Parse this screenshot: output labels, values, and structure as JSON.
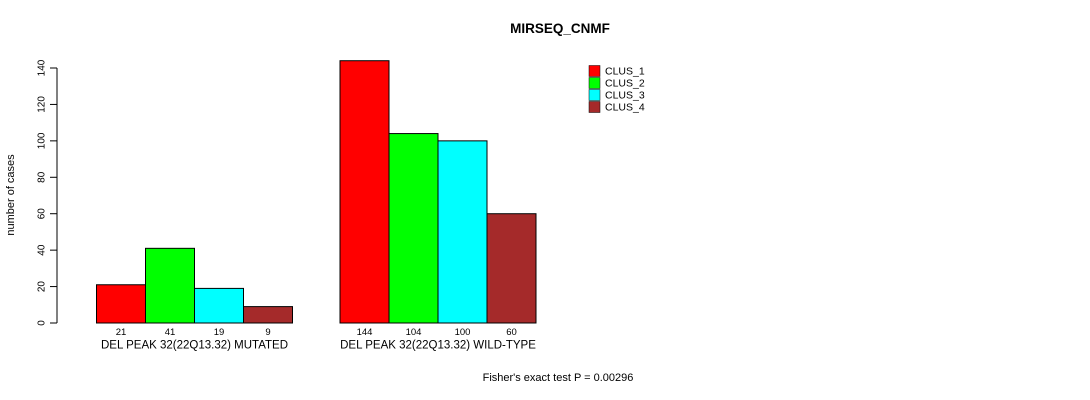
{
  "page": {
    "background": "#ffffff",
    "axis_color": "#000000",
    "text_color": "#000000"
  },
  "chart_data": {
    "type": "bar",
    "title": "MIRSEQ_CNMF",
    "xlabel": "",
    "ylabel": "number of cases",
    "ylim": [
      0,
      140
    ],
    "yticks": [
      0,
      20,
      40,
      60,
      80,
      100,
      120,
      140
    ],
    "grid": false,
    "bar_outline_color": "#000000",
    "categories": [
      "DEL PEAK 32(22Q13.32) MUTATED",
      "DEL PEAK 32(22Q13.32) WILD-TYPE"
    ],
    "series": [
      {
        "name": "CLUS_1",
        "color": "#ff0000",
        "values": [
          21,
          144
        ]
      },
      {
        "name": "CLUS_2",
        "color": "#00ff00",
        "values": [
          41,
          104
        ]
      },
      {
        "name": "CLUS_3",
        "color": "#00ffff",
        "values": [
          19,
          100
        ]
      },
      {
        "name": "CLUS_4",
        "color": "#a52a2a",
        "values": [
          9,
          60
        ]
      }
    ],
    "legend": {
      "position": "top-right",
      "entries": [
        "CLUS_1",
        "CLUS_2",
        "CLUS_3",
        "CLUS_4"
      ]
    },
    "footnote": "Fisher's exact test P = 0.00296"
  }
}
